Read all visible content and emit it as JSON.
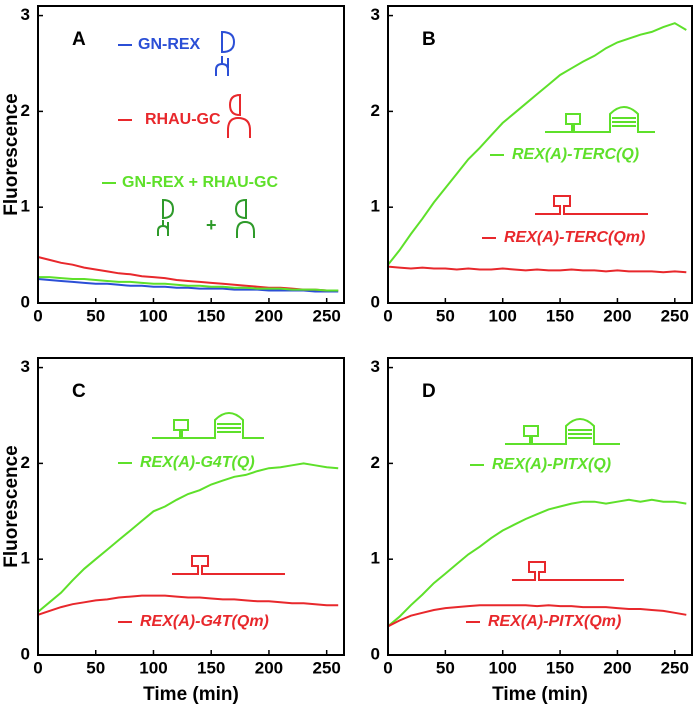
{
  "chart_data": [
    {
      "type": "line",
      "panel_label": "A",
      "ylabel": "Fluorescence",
      "x": [
        0,
        10,
        20,
        30,
        40,
        50,
        60,
        70,
        80,
        90,
        100,
        110,
        120,
        130,
        140,
        150,
        160,
        170,
        180,
        190,
        200,
        210,
        220,
        230,
        240,
        250,
        260
      ],
      "xlim": [
        0,
        265
      ],
      "ylim": [
        0,
        3.1
      ],
      "xticks": [
        0,
        50,
        100,
        150,
        200,
        250
      ],
      "yticks": [
        0,
        1,
        2,
        3
      ],
      "series": [
        {
          "name": "GN-REX",
          "color": "#2b4fd6",
          "values": [
            0.25,
            0.24,
            0.23,
            0.22,
            0.21,
            0.2,
            0.2,
            0.19,
            0.18,
            0.18,
            0.17,
            0.17,
            0.16,
            0.16,
            0.15,
            0.15,
            0.15,
            0.14,
            0.14,
            0.14,
            0.13,
            0.13,
            0.13,
            0.13,
            0.12,
            0.12,
            0.12
          ]
        },
        {
          "name": "RHAU-GC",
          "color": "#e8282c",
          "values": [
            0.48,
            0.45,
            0.42,
            0.4,
            0.37,
            0.35,
            0.33,
            0.31,
            0.3,
            0.28,
            0.27,
            0.26,
            0.24,
            0.23,
            0.22,
            0.21,
            0.2,
            0.19,
            0.18,
            0.17,
            0.16,
            0.16,
            0.15,
            0.14,
            0.14,
            0.13,
            0.13
          ]
        },
        {
          "name": "GN-REX + RHAU-GC",
          "color": "#5ee02a",
          "values": [
            0.27,
            0.27,
            0.26,
            0.25,
            0.25,
            0.24,
            0.23,
            0.22,
            0.22,
            0.21,
            0.2,
            0.2,
            0.19,
            0.18,
            0.18,
            0.17,
            0.17,
            0.16,
            0.16,
            0.15,
            0.15,
            0.15,
            0.14,
            0.14,
            0.14,
            0.13,
            0.13
          ]
        }
      ]
    },
    {
      "type": "line",
      "panel_label": "B",
      "x": [
        0,
        10,
        20,
        30,
        40,
        50,
        60,
        70,
        80,
        90,
        100,
        110,
        120,
        130,
        140,
        150,
        160,
        170,
        180,
        190,
        200,
        210,
        220,
        230,
        240,
        250,
        260
      ],
      "xlim": [
        0,
        265
      ],
      "ylim": [
        0,
        3.1
      ],
      "xticks": [
        0,
        50,
        100,
        150,
        200,
        250
      ],
      "yticks": [
        0,
        1,
        2,
        3
      ],
      "series": [
        {
          "name": "REX(A)-TERC(Q)",
          "color": "#5ee02a",
          "values": [
            0.4,
            0.55,
            0.72,
            0.88,
            1.05,
            1.2,
            1.35,
            1.5,
            1.62,
            1.75,
            1.88,
            1.98,
            2.08,
            2.18,
            2.28,
            2.38,
            2.45,
            2.52,
            2.58,
            2.66,
            2.72,
            2.76,
            2.8,
            2.83,
            2.88,
            2.92,
            2.85
          ]
        },
        {
          "name": "REX(A)-TERC(Qm)",
          "color": "#e8282c",
          "values": [
            0.38,
            0.37,
            0.36,
            0.37,
            0.36,
            0.36,
            0.35,
            0.36,
            0.35,
            0.35,
            0.36,
            0.35,
            0.34,
            0.35,
            0.34,
            0.34,
            0.35,
            0.34,
            0.34,
            0.33,
            0.34,
            0.33,
            0.33,
            0.33,
            0.32,
            0.33,
            0.32
          ]
        }
      ]
    },
    {
      "type": "line",
      "panel_label": "C",
      "ylabel": "Fluorescence",
      "xlabel": "Time (min)",
      "x": [
        0,
        10,
        20,
        30,
        40,
        50,
        60,
        70,
        80,
        90,
        100,
        110,
        120,
        130,
        140,
        150,
        160,
        170,
        180,
        190,
        200,
        210,
        220,
        230,
        240,
        250,
        260
      ],
      "xlim": [
        0,
        265
      ],
      "ylim": [
        0,
        3.1
      ],
      "xticks": [
        0,
        50,
        100,
        150,
        200,
        250
      ],
      "yticks": [
        0,
        1,
        2,
        3
      ],
      "series": [
        {
          "name": "REX(A)-G4T(Q)",
          "color": "#5ee02a",
          "values": [
            0.45,
            0.55,
            0.65,
            0.78,
            0.9,
            1.0,
            1.1,
            1.2,
            1.3,
            1.4,
            1.5,
            1.55,
            1.62,
            1.68,
            1.72,
            1.78,
            1.82,
            1.86,
            1.88,
            1.92,
            1.95,
            1.96,
            1.98,
            2.0,
            1.98,
            1.96,
            1.95
          ]
        },
        {
          "name": "REX(A)-G4T(Qm)",
          "color": "#e8282c",
          "values": [
            0.42,
            0.46,
            0.5,
            0.53,
            0.55,
            0.57,
            0.58,
            0.6,
            0.61,
            0.62,
            0.62,
            0.62,
            0.61,
            0.6,
            0.6,
            0.59,
            0.58,
            0.58,
            0.57,
            0.56,
            0.56,
            0.55,
            0.54,
            0.54,
            0.53,
            0.52,
            0.52
          ]
        }
      ]
    },
    {
      "type": "line",
      "panel_label": "D",
      "xlabel": "Time (min)",
      "x": [
        0,
        10,
        20,
        30,
        40,
        50,
        60,
        70,
        80,
        90,
        100,
        110,
        120,
        130,
        140,
        150,
        160,
        170,
        180,
        190,
        200,
        210,
        220,
        230,
        240,
        250,
        260
      ],
      "xlim": [
        0,
        265
      ],
      "ylim": [
        0,
        3.1
      ],
      "xticks": [
        0,
        50,
        100,
        150,
        200,
        250
      ],
      "yticks": [
        0,
        1,
        2,
        3
      ],
      "series": [
        {
          "name": "REX(A)-PITX(Q)",
          "color": "#5ee02a",
          "values": [
            0.3,
            0.4,
            0.52,
            0.63,
            0.75,
            0.85,
            0.95,
            1.05,
            1.13,
            1.22,
            1.3,
            1.36,
            1.42,
            1.47,
            1.52,
            1.55,
            1.58,
            1.6,
            1.6,
            1.58,
            1.6,
            1.62,
            1.6,
            1.62,
            1.6,
            1.6,
            1.58
          ]
        },
        {
          "name": "REX(A)-PITX(Qm)",
          "color": "#e8282c",
          "values": [
            0.3,
            0.36,
            0.41,
            0.44,
            0.47,
            0.49,
            0.5,
            0.51,
            0.52,
            0.52,
            0.52,
            0.52,
            0.52,
            0.51,
            0.52,
            0.51,
            0.51,
            0.5,
            0.5,
            0.5,
            0.49,
            0.48,
            0.48,
            0.47,
            0.46,
            0.44,
            0.42
          ]
        }
      ]
    }
  ]
}
